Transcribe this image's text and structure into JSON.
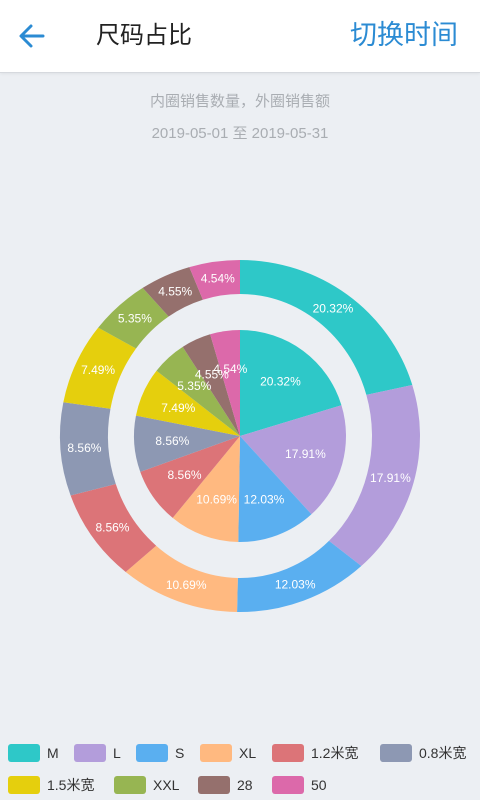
{
  "header": {
    "title": "尺码占比",
    "switch_label": "切换时间"
  },
  "subtitle": "内圈销售数量，外圈销售额",
  "date_range": "2019-05-01 至 2019-05-31",
  "chart_data": {
    "type": "pie",
    "categories": [
      "M",
      "L",
      "S",
      "XL",
      "1.2米宽",
      "0.8米宽",
      "1.5米宽",
      "XXL",
      "28",
      "50"
    ],
    "colors": [
      "#2ec8c8",
      "#b39ddb",
      "#5aaff0",
      "#ffb980",
      "#dc7478",
      "#8d98b3",
      "#e5cf0d",
      "#97b552",
      "#95706d",
      "#dc69aa"
    ],
    "series": [
      {
        "values": [
          20.32,
          17.91,
          12.03,
          10.69,
          8.56,
          8.56,
          7.49,
          5.35,
          4.55,
          4.54
        ]
      },
      {
        "values": [
          20.32,
          17.91,
          12.03,
          10.69,
          8.56,
          8.56,
          7.49,
          5.35,
          4.55,
          4.54
        ]
      }
    ],
    "labels": [
      [
        "20.32%",
        "17.91%",
        "12.03%",
        "10.69%",
        "8.56%",
        "8.56%",
        "7.49%",
        "5.35%",
        "4.55%",
        "4.54%"
      ],
      [
        "20.32%",
        "17.91%",
        "12.03%",
        "10.69%",
        "8.56%",
        "8.56%",
        "7.49%",
        "5.35%",
        "4.55%",
        "4.54%"
      ]
    ]
  }
}
